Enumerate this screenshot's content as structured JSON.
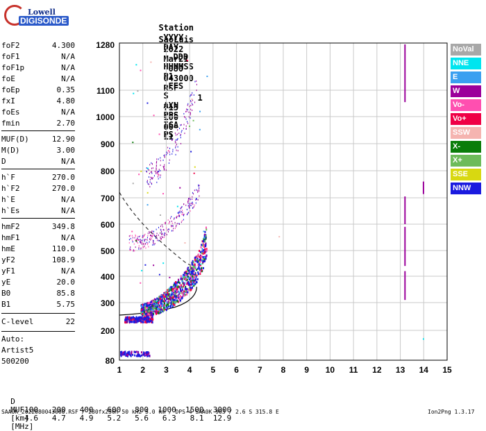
{
  "logo": {
    "line1": "Lowell",
    "line2": "DIGISONDE"
  },
  "header": {
    "row1": [
      "Station",
      "YYYY",
      "DAY",
      "DDD",
      "HHMMSS",
      "P1",
      "FFS",
      "S",
      "AXN",
      "PPS",
      "IGA",
      "PS"
    ],
    "row2": [
      "SaoLuis",
      "2022",
      "Mar21",
      "080",
      "043000",
      "RSF",
      "1",
      "715",
      "100",
      "00-",
      "11"
    ]
  },
  "params": [
    {
      "k": "foF2",
      "v": "4.300"
    },
    {
      "k": "foF1",
      "v": "N/A"
    },
    {
      "k": "foF1p",
      "v": "N/A"
    },
    {
      "k": "foE",
      "v": "N/A"
    },
    {
      "k": "foEp",
      "v": "0.35"
    },
    {
      "k": "fxI",
      "v": "4.80"
    },
    {
      "k": "foEs",
      "v": "N/A"
    },
    {
      "k": "fmin",
      "v": "2.70"
    },
    {
      "k": "MUF(D)",
      "v": "12.90"
    },
    {
      "k": "M(D)",
      "v": "3.00"
    },
    {
      "k": "D",
      "v": "N/A"
    },
    {
      "k": "h`F",
      "v": "270.0"
    },
    {
      "k": "h`F2",
      "v": "270.0"
    },
    {
      "k": "h`E",
      "v": "N/A"
    },
    {
      "k": "h`Es",
      "v": "N/A"
    },
    {
      "k": "hmF2",
      "v": "349.8"
    },
    {
      "k": "hmF1",
      "v": "N/A"
    },
    {
      "k": "hmE",
      "v": "110.0"
    },
    {
      "k": "yF2",
      "v": "108.9"
    },
    {
      "k": "yF1",
      "v": "N/A"
    },
    {
      "k": "yE",
      "v": "20.0"
    },
    {
      "k": "B0",
      "v": "85.8"
    },
    {
      "k": "B1",
      "v": "5.75"
    },
    {
      "k": "C-level",
      "v": "22"
    }
  ],
  "autoscaler": {
    "line1": "Auto:",
    "line2": "Artist5",
    "line3": "500200"
  },
  "legend": [
    {
      "label": "NoVal",
      "color": "#a8a8a8"
    },
    {
      "label": "NNE",
      "color": "#00e5ef"
    },
    {
      "label": "E",
      "color": "#3aa0f0"
    },
    {
      "label": "W",
      "color": "#9b009b"
    },
    {
      "label": "Vo-",
      "color": "#ff4fb0"
    },
    {
      "label": "Vo+",
      "color": "#ef0045"
    },
    {
      "label": "SSW",
      "color": "#f5b4b0"
    },
    {
      "label": "X-",
      "color": "#0a7d0a"
    },
    {
      "label": "X+",
      "color": "#6dbb5a"
    },
    {
      "label": "SSE",
      "color": "#d8d811"
    },
    {
      "label": "NNW",
      "color": "#1a1adf"
    }
  ],
  "plot": {
    "y_ticks": [
      "1280",
      "1100",
      "1000",
      "900",
      "800",
      "700",
      "600",
      "500",
      "400",
      "300",
      "200",
      "80"
    ],
    "x_ticks": [
      "1",
      "2",
      "3",
      "4",
      "5",
      "6",
      "7",
      "8",
      "9",
      "10",
      "11",
      "12",
      "13",
      "14",
      "15"
    ]
  },
  "muf_table": {
    "d_label": "D",
    "d_values": [
      "100",
      "200",
      "400",
      "600",
      "800",
      "1000",
      "1500",
      "3000"
    ],
    "d_unit": "[km]",
    "muf_label": "MUF",
    "muf_values": [
      "4.6",
      "4.7",
      "4.9",
      "5.2",
      "5.6",
      "6.3",
      "8.1",
      "12.9"
    ],
    "muf_unit": "[MHz]"
  },
  "footer": {
    "left": "SAA0K_2022080043000.RSF / 280fx256h 50 kHz 5.0 km / DPS-4 SAA0K 903 / 2.6 S 315.8 E",
    "right": "Ion2Png 1.3.17"
  }
}
